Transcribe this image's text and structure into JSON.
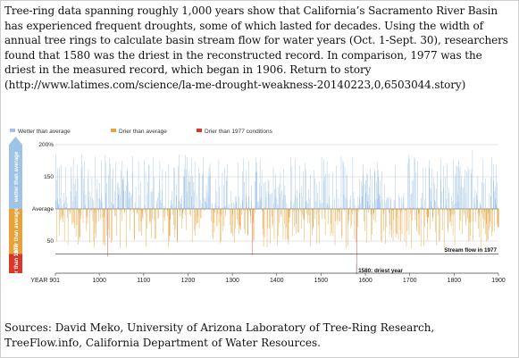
{
  "intro_text": "Tree-ring data spanning roughly 1,000 years show that California’s Sacramento River Basin has experienced frequent droughts, some of which lasted for decades. Using the width of annual tree rings to calculate basin stream flow for water years (Oct. 1-Sept. 30), researchers found that 1580 was the driest in the reconstructed record. In comparison, 1977 was the driest in the measured record, which began in 1906. Return to story (http://www.latimes.com/science/la-me-drought-weakness-20140223,0,6503044.story)",
  "sources_text": "Sources: David Meko, University of Arizona Laboratory of Tree-Ring Research, TreeFlow.info, California Department of Water Resources.",
  "colors": {
    "wetter": "#9fc3e6",
    "drier": "#e7a33a",
    "drier1977": "#d9372a",
    "axis_text": "#222222"
  },
  "chart_data": {
    "type": "bar",
    "legend": [
      {
        "label": "Wetter than average",
        "color": "#9fc3e6"
      },
      {
        "label": "Drier than average",
        "color": "#e7a33a"
      },
      {
        "label": "Drier than 1977 conditions",
        "color": "#d9372a"
      }
    ],
    "x_range": [
      901,
      1900
    ],
    "x_ticks": [
      {
        "value": 901,
        "label": "YEAR 901"
      },
      {
        "value": 1000,
        "label": "1000"
      },
      {
        "value": 1100,
        "label": "1100"
      },
      {
        "value": 1200,
        "label": "1200"
      },
      {
        "value": 1300,
        "label": "1300"
      },
      {
        "value": 1400,
        "label": "1400"
      },
      {
        "value": 1500,
        "label": "1500"
      },
      {
        "value": 1600,
        "label": "1600"
      },
      {
        "value": 1700,
        "label": "1700"
      },
      {
        "value": 1800,
        "label": "1800"
      },
      {
        "value": 1900,
        "label": "1900"
      }
    ],
    "y_unit": "percent of average stream flow",
    "y_range": [
      0,
      200
    ],
    "y_ticks": [
      {
        "value": 200,
        "label": "200%"
      },
      {
        "value": 150,
        "label": "150"
      },
      {
        "value": 100,
        "label": "Average"
      },
      {
        "value": 50,
        "label": "50"
      }
    ],
    "baseline": 100,
    "reference_1977": 30,
    "side_bands": [
      {
        "label": "wetter than average",
        "color": "#9fc3e6",
        "from": 100,
        "to": 200
      },
      {
        "label": "drier than average",
        "color": "#e7a33a",
        "from": 30,
        "to": 100
      },
      {
        "label": "drier than 1977",
        "color": "#d9372a",
        "from": 0,
        "to": 30
      }
    ],
    "annotations": [
      {
        "text": "Stream flow in 1977",
        "year": 1900,
        "value": 30
      },
      {
        "text": "1580: driest year",
        "year": 1580,
        "value": 15
      }
    ],
    "highlight_values": [
      {
        "year": 1580,
        "value": 15
      },
      {
        "year": 1977,
        "value": 30
      },
      {
        "year": 1344,
        "value": 28
      },
      {
        "year": 1018,
        "value": 26
      },
      {
        "year": 1841,
        "value": 192
      }
    ]
  }
}
